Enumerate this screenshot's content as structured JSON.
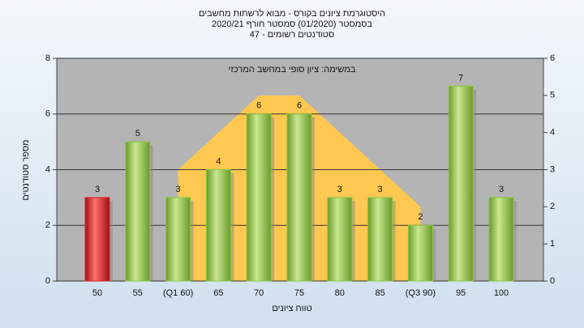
{
  "chart_data": {
    "type": "bar",
    "title": "היסטוגרמת ציונים בקורס - מבוא לרשתות מחשבים",
    "subtitle": "בסמסטר (01/2020) סמסטר חורף 2020/21",
    "subtitle2": "סטודנטים רשומים - 47",
    "annotation": "במשימה: ציון סופי במחשב המרכזי",
    "x_label": "טווח ציונים",
    "y_label": "מספר סטודנטים",
    "categories": [
      "50",
      "55",
      "(Q1 60)",
      "65",
      "70",
      "75",
      "80",
      "85",
      "(Q3 90)",
      "95",
      "100"
    ],
    "series": [
      {
        "type": "bar",
        "colors": [
          "#e02020",
          "#8dc63f",
          "#8dc63f",
          "#8dc63f",
          "#8dc63f",
          "#8dc63f",
          "#8dc63f",
          "#8dc63f",
          "#8dc63f",
          "#8dc63f",
          "#8dc63f"
        ],
        "values": [
          3,
          5,
          3,
          4,
          6,
          6,
          3,
          3,
          2,
          7,
          3
        ]
      },
      {
        "type": "area",
        "axis": "y2",
        "color": "#ffc850",
        "values": [
          null,
          null,
          3,
          4,
          5,
          5,
          4,
          3,
          2,
          null,
          null
        ]
      }
    ],
    "ylim": [
      0,
      8
    ],
    "yticks": [
      0,
      2,
      4,
      6,
      8
    ],
    "y2lim": [
      0,
      6
    ],
    "y2ticks": [
      0,
      1,
      2,
      3,
      4,
      5,
      6
    ],
    "grid": true
  }
}
